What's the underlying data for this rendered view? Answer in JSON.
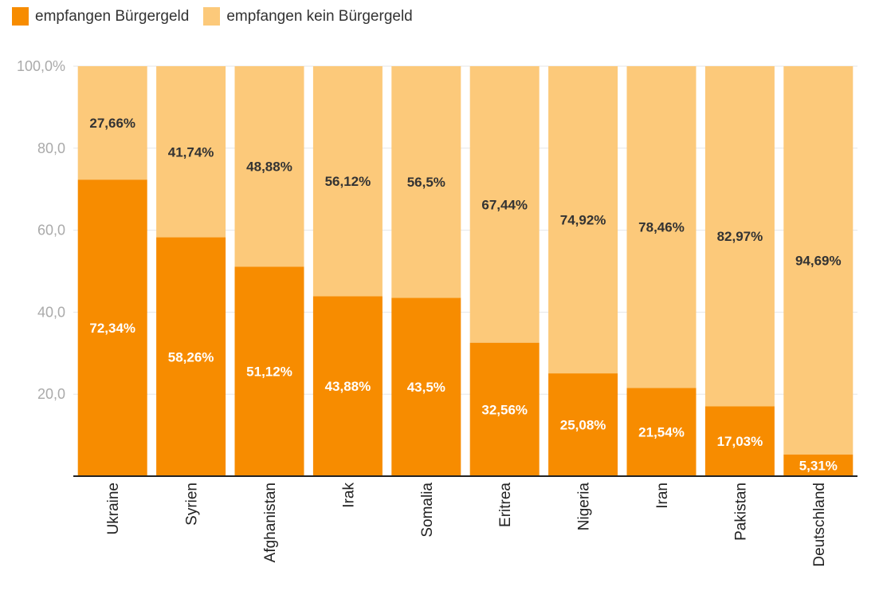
{
  "chart_data": {
    "type": "bar",
    "stacked": true,
    "categories": [
      "Ukraine",
      "Syrien",
      "Afghanistan",
      "Irak",
      "Somalia",
      "Eritrea",
      "Nigeria",
      "Iran",
      "Pakistan",
      "Deutschland"
    ],
    "series": [
      {
        "name": "empfangen Bürgergeld",
        "color": "#F78C00",
        "values": [
          72.34,
          58.26,
          51.12,
          43.88,
          43.5,
          32.56,
          25.08,
          21.54,
          17.03,
          5.31
        ],
        "labels": [
          "72,34%",
          "58,26%",
          "51,12%",
          "43,88%",
          "43,5%",
          "32,56%",
          "25,08%",
          "21,54%",
          "17,03%",
          "5,31%"
        ]
      },
      {
        "name": "empfangen kein Bürgergeld",
        "color": "#FCC97A",
        "values": [
          27.66,
          41.74,
          48.88,
          56.12,
          56.5,
          67.44,
          74.92,
          78.46,
          82.97,
          94.69
        ],
        "labels": [
          "27,66%",
          "41,74%",
          "48,88%",
          "56,12%",
          "56,5%",
          "67,44%",
          "74,92%",
          "78,46%",
          "82,97%",
          "94,69%"
        ]
      }
    ],
    "ylim": [
      0,
      100
    ],
    "yticks": [
      20,
      40,
      60,
      80,
      100
    ],
    "ytick_labels": [
      "20,0",
      "40,0",
      "60,0",
      "80,0",
      "100,0%"
    ],
    "grid": true,
    "legend": "top-left",
    "title": "",
    "xlabel": "",
    "ylabel": ""
  }
}
